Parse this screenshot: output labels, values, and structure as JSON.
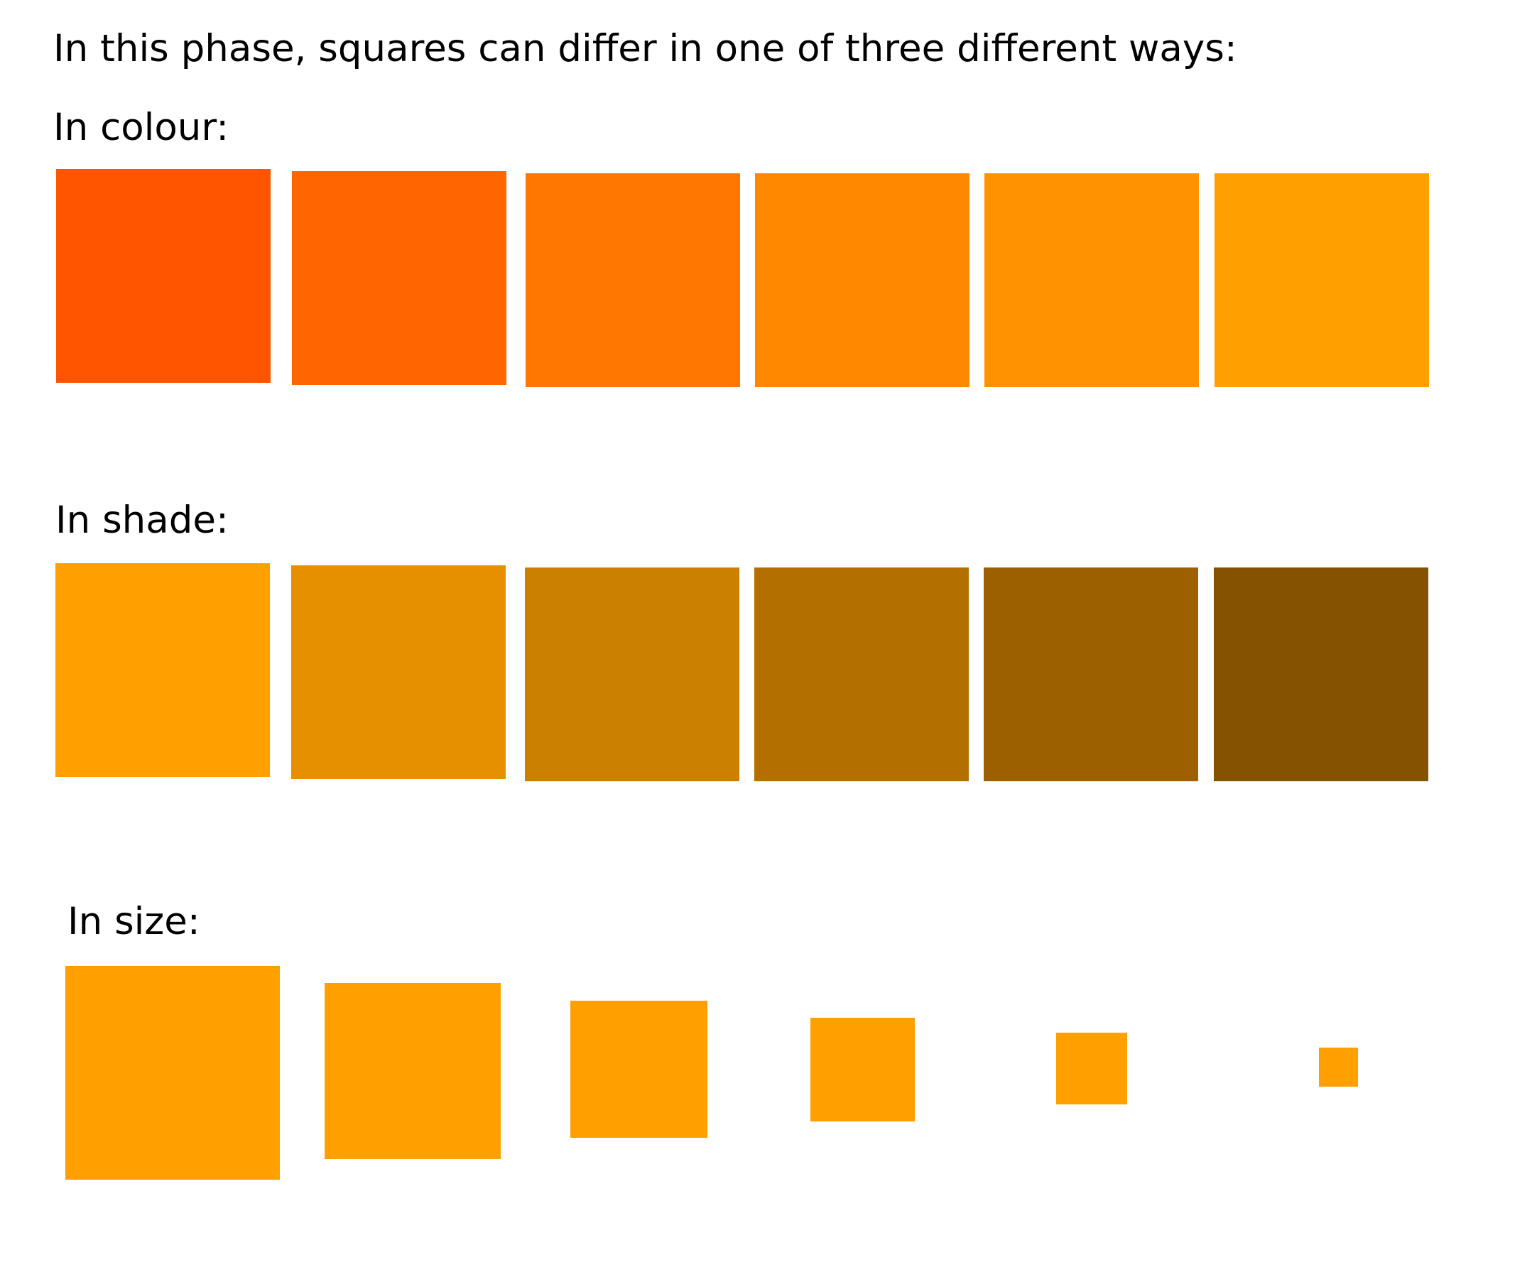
{
  "intro": "In this phase, squares can differ in one of three different ways:",
  "sections": {
    "colour": {
      "label": "In colour:",
      "squares": [
        {
          "color": "#FF5500"
        },
        {
          "color": "#FF6600"
        },
        {
          "color": "#FF7700"
        },
        {
          "color": "#FF8800"
        },
        {
          "color": "#FF9200"
        },
        {
          "color": "#FFA000"
        }
      ]
    },
    "shade": {
      "label": "In shade:",
      "squares": [
        {
          "color": "#FFA000"
        },
        {
          "color": "#E69000"
        },
        {
          "color": "#CC8000"
        },
        {
          "color": "#B37000"
        },
        {
          "color": "#9C6000"
        },
        {
          "color": "#845200"
        }
      ]
    },
    "size": {
      "label": "In size:",
      "color": "#FFA000",
      "relative_sizes": [
        1.0,
        0.82,
        0.64,
        0.48,
        0.33,
        0.18
      ]
    }
  }
}
